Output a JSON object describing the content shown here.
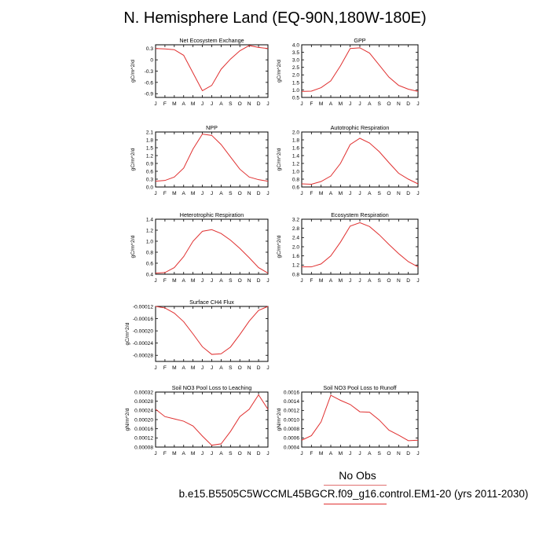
{
  "title": "N. Hemisphere Land (EQ-90N,180W-180E)",
  "legend": {
    "obs_label": "No Obs",
    "obs_color": "#e07070",
    "case_label": "b.e15.B5505C5WCCML45BGCR.f09_g16.control.EM1-20 (yrs 2011-2030)",
    "case_color": "#e03030"
  },
  "chart_data": [
    {
      "type": "line",
      "title": "Net Ecosystem Exchange",
      "ylabel": "gC/m^2/d",
      "x": [
        "J",
        "F",
        "M",
        "A",
        "M",
        "J",
        "J",
        "A",
        "S",
        "O",
        "N",
        "D",
        "J"
      ],
      "ylim": [
        -1.0,
        0.4
      ],
      "yticks": [
        0.3,
        0.0,
        -0.3,
        -0.6,
        -0.9
      ],
      "ytick_labels": [
        "0.3",
        "0",
        "-0.3",
        "-0.6",
        "-0.9"
      ],
      "series": [
        {
          "values": [
            0.3,
            0.29,
            0.27,
            0.12,
            -0.35,
            -0.82,
            -0.68,
            -0.25,
            0.02,
            0.24,
            0.38,
            0.33,
            0.3
          ],
          "color": "#e03030"
        }
      ]
    },
    {
      "type": "line",
      "title": "GPP",
      "ylabel": "gC/m^2/d",
      "x": [
        "J",
        "F",
        "M",
        "A",
        "M",
        "J",
        "J",
        "A",
        "S",
        "O",
        "N",
        "D",
        "J"
      ],
      "ylim": [
        0.5,
        4.0
      ],
      "yticks": [
        0.5,
        1.0,
        1.5,
        2.0,
        2.5,
        3.0,
        3.5,
        4.0
      ],
      "ytick_labels": [
        "0.5",
        "1.0",
        "1.5",
        "2.0",
        "2.5",
        "3.0",
        "3.5",
        "4.0"
      ],
      "series": [
        {
          "values": [
            0.9,
            0.92,
            1.15,
            1.6,
            2.6,
            3.75,
            3.8,
            3.45,
            2.65,
            1.85,
            1.3,
            1.05,
            0.9
          ],
          "color": "#e03030"
        }
      ]
    },
    {
      "type": "line",
      "title": "NPP",
      "ylabel": "gC/m^2/d",
      "x": [
        "J",
        "F",
        "M",
        "A",
        "M",
        "J",
        "J",
        "A",
        "S",
        "O",
        "N",
        "D",
        "J"
      ],
      "ylim": [
        0.0,
        2.1
      ],
      "yticks": [
        0.0,
        0.3,
        0.6,
        0.9,
        1.2,
        1.5,
        1.8,
        2.1
      ],
      "ytick_labels": [
        "0.0",
        "0.3",
        "0.6",
        "0.9",
        "1.2",
        "1.5",
        "1.8",
        "2.1"
      ],
      "series": [
        {
          "values": [
            0.22,
            0.25,
            0.38,
            0.72,
            1.45,
            2.02,
            1.97,
            1.62,
            1.15,
            0.68,
            0.38,
            0.28,
            0.22
          ],
          "color": "#e03030"
        }
      ]
    },
    {
      "type": "line",
      "title": "Autotrophic Respiration",
      "ylabel": "gC/m^2/d",
      "x": [
        "J",
        "F",
        "M",
        "A",
        "M",
        "J",
        "J",
        "A",
        "S",
        "O",
        "N",
        "D",
        "J"
      ],
      "ylim": [
        0.6,
        2.0
      ],
      "yticks": [
        0.6,
        0.8,
        1.0,
        1.2,
        1.4,
        1.6,
        1.8,
        2.0
      ],
      "ytick_labels": [
        "0.6",
        "0.8",
        "1.0",
        "1.2",
        "1.4",
        "1.6",
        "1.8",
        "2.0"
      ],
      "series": [
        {
          "values": [
            0.68,
            0.67,
            0.74,
            0.88,
            1.2,
            1.68,
            1.84,
            1.72,
            1.5,
            1.22,
            0.95,
            0.8,
            0.68
          ],
          "color": "#e03030"
        }
      ]
    },
    {
      "type": "line",
      "title": "Heterotrophic Respiration",
      "ylabel": "gC/m^2/d",
      "x": [
        "J",
        "F",
        "M",
        "A",
        "M",
        "J",
        "J",
        "A",
        "S",
        "O",
        "N",
        "D",
        "J"
      ],
      "ylim": [
        0.4,
        1.4
      ],
      "yticks": [
        0.4,
        0.6,
        0.8,
        1.0,
        1.2,
        1.4
      ],
      "ytick_labels": [
        "0.4",
        "0.6",
        "0.8",
        "1.0",
        "1.2",
        "1.4"
      ],
      "series": [
        {
          "values": [
            0.42,
            0.43,
            0.52,
            0.72,
            1.0,
            1.18,
            1.21,
            1.14,
            1.02,
            0.87,
            0.7,
            0.52,
            0.42
          ],
          "color": "#e03030"
        }
      ]
    },
    {
      "type": "line",
      "title": "Ecosystem Respiration",
      "ylabel": "gC/m^2/d",
      "x": [
        "J",
        "F",
        "M",
        "A",
        "M",
        "J",
        "J",
        "A",
        "S",
        "O",
        "N",
        "D",
        "J"
      ],
      "ylim": [
        0.8,
        3.2
      ],
      "yticks": [
        0.8,
        1.2,
        1.6,
        2.0,
        2.4,
        2.8,
        3.2
      ],
      "ytick_labels": [
        "0.8",
        "1.2",
        "1.6",
        "2.0",
        "2.4",
        "2.8",
        "3.2"
      ],
      "series": [
        {
          "values": [
            1.12,
            1.12,
            1.25,
            1.6,
            2.2,
            2.9,
            3.05,
            2.88,
            2.52,
            2.1,
            1.7,
            1.35,
            1.12
          ],
          "color": "#e03030"
        }
      ]
    },
    {
      "type": "line",
      "title": "Surface CH4 Flux",
      "ylabel": "gC/m^2/d",
      "x": [
        "J",
        "F",
        "M",
        "A",
        "M",
        "J",
        "J",
        "A",
        "S",
        "O",
        "N",
        "D",
        "J"
      ],
      "ylim": [
        -0.0003,
        -0.00012
      ],
      "yticks": [
        -0.00012,
        -0.00016,
        -0.0002,
        -0.00024,
        -0.00028
      ],
      "ytick_labels": [
        "-0.00012",
        "-0.00016",
        "-0.00020",
        "-0.00024",
        "-0.00028"
      ],
      "series": [
        {
          "values": [
            -0.00012,
            -0.000125,
            -0.000142,
            -0.00017,
            -0.00021,
            -0.000252,
            -0.000277,
            -0.000275,
            -0.000253,
            -0.000212,
            -0.000168,
            -0.000133,
            -0.00012
          ],
          "color": "#e03030"
        }
      ]
    },
    {
      "type": "line",
      "title": "Soil NO3 Pool Loss to Leaching",
      "ylabel": "gN/m^2/d",
      "x": [
        "J",
        "F",
        "M",
        "A",
        "M",
        "J",
        "J",
        "A",
        "S",
        "O",
        "N",
        "D",
        "J"
      ],
      "ylim": [
        8e-05,
        0.00032
      ],
      "yticks": [
        8e-05,
        0.00012,
        0.00016,
        0.0002,
        0.00024,
        0.00028,
        0.00032
      ],
      "ytick_labels": [
        "0.00008",
        "0.00012",
        "0.00016",
        "0.00020",
        "0.00024",
        "0.00028",
        "0.00032"
      ],
      "series": [
        {
          "values": [
            0.000245,
            0.000213,
            0.000203,
            0.000193,
            0.000172,
            0.000128,
            8.8e-05,
            9.4e-05,
            0.000148,
            0.000213,
            0.000245,
            0.000308,
            0.000245
          ],
          "color": "#e03030"
        }
      ]
    },
    {
      "type": "line",
      "title": "Soil NO3 Pool Loss to Runoff",
      "ylabel": "gN/m^2/d",
      "x": [
        "J",
        "F",
        "M",
        "A",
        "M",
        "J",
        "J",
        "A",
        "S",
        "O",
        "N",
        "D",
        "J"
      ],
      "ylim": [
        0.0004,
        0.0016
      ],
      "yticks": [
        0.0004,
        0.0006,
        0.0008,
        0.001,
        0.0012,
        0.0014,
        0.0016
      ],
      "ytick_labels": [
        "0.0004",
        "0.0006",
        "0.0008",
        "0.0010",
        "0.0012",
        "0.0014",
        "0.0016"
      ],
      "series": [
        {
          "values": [
            0.00055,
            0.00065,
            0.00095,
            0.00153,
            0.00142,
            0.00133,
            0.00117,
            0.00116,
            0.00099,
            0.00077,
            0.00066,
            0.00054,
            0.00055
          ],
          "color": "#e03030"
        }
      ]
    }
  ]
}
